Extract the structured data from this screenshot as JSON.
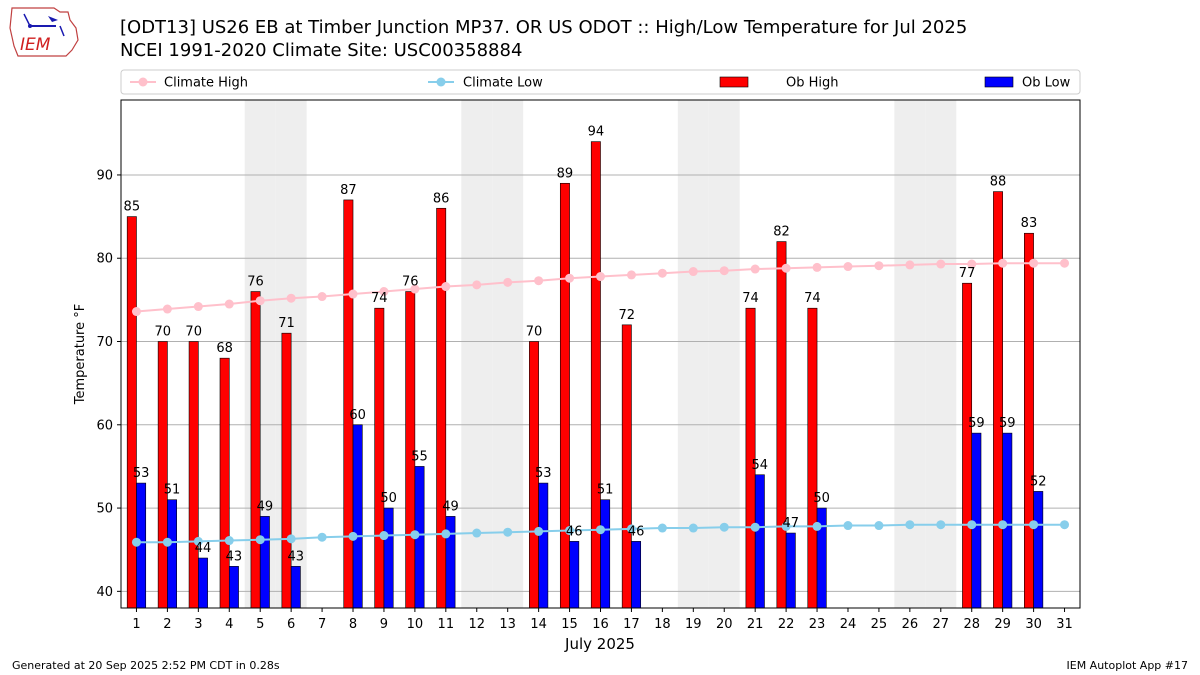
{
  "header": {
    "title_line1": "[ODT13] US26 EB at Timber Junction MP37. OR US ODOT :: High/Low Temperature for Jul 2025",
    "title_line2": "NCEI 1991-2020 Climate Site: USC00358884",
    "logo_text": "IEM"
  },
  "footer": {
    "left": "Generated at 20 Sep 2025 2:52 PM CDT in 0.28s",
    "right": "IEM Autoplot App #17"
  },
  "colors": {
    "ob_high": "#ff0000",
    "ob_low": "#0000ff",
    "climate_high": "#ffc0cb",
    "climate_low": "#87ceeb",
    "weekend_band": "#eeeeee",
    "grid": "#b0b0b0"
  },
  "chart_data": {
    "type": "bar",
    "xlabel": "July 2025",
    "ylabel": "Temperature °F",
    "ylim": [
      38,
      99
    ],
    "yticks": [
      40,
      50,
      60,
      70,
      80,
      90
    ],
    "grid": "horizontal",
    "legend_position": "top",
    "categories": [
      "1",
      "2",
      "3",
      "4",
      "5",
      "6",
      "7",
      "8",
      "9",
      "10",
      "11",
      "12",
      "13",
      "14",
      "15",
      "16",
      "17",
      "18",
      "19",
      "20",
      "21",
      "22",
      "23",
      "24",
      "25",
      "26",
      "27",
      "28",
      "29",
      "30",
      "31"
    ],
    "shaded_days": [
      5,
      6,
      12,
      13,
      19,
      20,
      26,
      27
    ],
    "series": [
      {
        "name": "Ob High",
        "kind": "bar",
        "values": [
          85,
          70,
          70,
          68,
          76,
          71,
          null,
          87,
          74,
          76,
          86,
          null,
          null,
          70,
          89,
          94,
          72,
          null,
          null,
          null,
          74,
          82,
          74,
          null,
          null,
          null,
          null,
          77,
          88,
          83,
          null
        ],
        "labels": [
          "85",
          "70",
          "70",
          "68",
          "76",
          "71",
          null,
          "87",
          "74",
          "76",
          "86",
          null,
          null,
          "70",
          "89",
          "94",
          "72",
          null,
          null,
          null,
          "74",
          "82",
          "74",
          null,
          null,
          null,
          null,
          "77",
          "88",
          "83",
          null
        ]
      },
      {
        "name": "Ob Low",
        "kind": "bar",
        "values": [
          53,
          51,
          44,
          43,
          49,
          43,
          null,
          60,
          50,
          55,
          49,
          null,
          null,
          53,
          46,
          51,
          46,
          null,
          null,
          null,
          54,
          47,
          50,
          null,
          null,
          null,
          null,
          59,
          59,
          52,
          null
        ],
        "labels": [
          "53",
          "51",
          "44",
          "43",
          "49",
          "43",
          null,
          "60",
          "50",
          "55",
          "49",
          null,
          null,
          "53",
          "46",
          "51",
          "46",
          null,
          null,
          null,
          "54",
          "47",
          "50",
          null,
          null,
          null,
          null,
          "59",
          "59",
          "52",
          null
        ]
      },
      {
        "name": "Climate High",
        "kind": "line",
        "values": [
          73.6,
          73.9,
          74.2,
          74.5,
          74.9,
          75.2,
          75.4,
          75.7,
          76.0,
          76.3,
          76.6,
          76.8,
          77.1,
          77.3,
          77.6,
          77.8,
          78.0,
          78.2,
          78.4,
          78.5,
          78.7,
          78.8,
          78.9,
          79.0,
          79.1,
          79.2,
          79.3,
          79.3,
          79.4,
          79.4,
          79.4
        ]
      },
      {
        "name": "Climate Low",
        "kind": "line",
        "values": [
          45.9,
          45.9,
          46.0,
          46.1,
          46.2,
          46.3,
          46.5,
          46.6,
          46.7,
          46.8,
          46.9,
          47.0,
          47.1,
          47.2,
          47.3,
          47.4,
          47.5,
          47.6,
          47.6,
          47.7,
          47.7,
          47.8,
          47.8,
          47.9,
          47.9,
          48.0,
          48.0,
          48.0,
          48.0,
          48.0,
          48.0
        ]
      }
    ],
    "legend": [
      "Climate High",
      "Climate Low",
      "Ob High",
      "Ob Low"
    ]
  }
}
